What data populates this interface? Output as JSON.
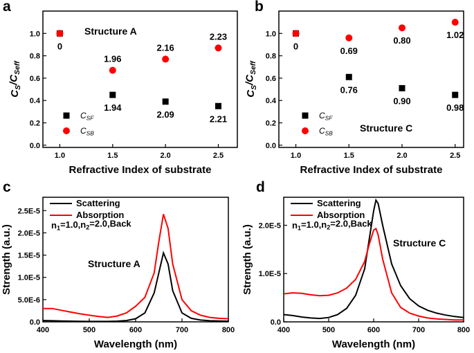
{
  "chart_data": [
    {
      "type": "scatter",
      "panel": "a",
      "x": [
        1.0,
        1.5,
        2.0,
        2.5
      ],
      "series": [
        {
          "name": "C",
          "name_sub": "SF",
          "color": "#000000",
          "marker": "square",
          "values": [
            1.0,
            0.45,
            0.39,
            0.35
          ],
          "point_labels": [
            "0",
            "1.94",
            "2.09",
            "2.21"
          ],
          "label_position": "below"
        },
        {
          "name": "C",
          "name_sub": "SB",
          "color": "#ff0000",
          "marker": "circle",
          "values": [
            1.0,
            0.67,
            0.77,
            0.87
          ],
          "point_labels": [
            null,
            "1.96",
            "2.16",
            "2.23"
          ],
          "label_position": "above"
        }
      ],
      "annotation": "Structure A",
      "xlabel": "Refractive Index of substrate",
      "ylabel": [
        "C",
        "S",
        "/C",
        "Seff"
      ],
      "xlim": [
        0.84,
        2.68
      ],
      "ylim": [
        -0.02,
        1.2
      ],
      "xticks": [
        {
          "value": 1.0,
          "label": "1.0"
        },
        1.5,
        {
          "value": 2.0,
          "label": "2.0"
        },
        2.5
      ],
      "yticks": [
        {
          "value": 0.0,
          "label": "0.0"
        },
        0.2,
        0.4,
        0.6,
        0.8,
        {
          "value": 1.0,
          "label": "1.0"
        }
      ]
    },
    {
      "type": "scatter",
      "panel": "b",
      "x": [
        1.0,
        1.5,
        2.0,
        2.5
      ],
      "series": [
        {
          "name": "C",
          "name_sub": "SF",
          "color": "#000000",
          "marker": "square",
          "values": [
            1.0,
            0.61,
            0.51,
            0.45
          ],
          "point_labels": [
            "0",
            "0.76",
            "0.90",
            "0.98"
          ],
          "label_position": "below"
        },
        {
          "name": "C",
          "name_sub": "SB",
          "color": "#ff0000",
          "marker": "circle",
          "values": [
            1.0,
            0.96,
            1.05,
            1.1
          ],
          "point_labels": [
            null,
            "0.69",
            "0.80",
            "1.02"
          ],
          "label_position": "below"
        }
      ],
      "annotation": "Structure C",
      "xlabel": "Refractive Index of substrate",
      "ylabel": [
        "C",
        "S",
        "/C",
        "Seff"
      ],
      "xlim": [
        0.84,
        2.58
      ],
      "ylim": [
        -0.02,
        1.2
      ],
      "xticks": [
        {
          "value": 1.0,
          "label": "1.0"
        },
        1.5,
        {
          "value": 2.0,
          "label": "2.0"
        },
        2.5
      ],
      "yticks": [
        {
          "value": 0.0,
          "label": "0.0"
        },
        0.2,
        0.4,
        0.6,
        0.8,
        {
          "value": 1.0,
          "label": "1.0"
        }
      ]
    },
    {
      "type": "line",
      "panel": "c",
      "x": [
        400,
        420,
        440,
        460,
        480,
        500,
        520,
        540,
        560,
        580,
        600,
        620,
        640,
        650,
        660,
        670,
        680,
        700,
        720,
        740,
        760,
        780,
        800
      ],
      "series": [
        {
          "name": "Scattering",
          "color": "#000000",
          "values": [
            3e-07,
            2.5e-07,
            2e-07,
            1.5e-07,
            1.2e-07,
            1e-07,
            1e-07,
            1e-07,
            1.5e-07,
            3e-07,
            7e-07,
            2e-06,
            6.5e-06,
            1.1e-05,
            1.55e-05,
            1.3e-05,
            7e-06,
            2e-06,
            8e-07,
            4e-07,
            2.5e-07,
            2e-07,
            1.5e-07
          ]
        },
        {
          "name": "Absorption",
          "color": "#ff0000",
          "values": [
            3e-06,
            3e-06,
            2.6e-06,
            2.2e-06,
            1.8e-06,
            1.5e-06,
            1.2e-06,
            1e-06,
            1.3e-06,
            2e-06,
            3.5e-06,
            5.5e-06,
            1.1e-05,
            1.8e-05,
            2.42e-05,
            2.1e-05,
            1.3e-05,
            5e-06,
            2.5e-06,
            1.5e-06,
            1e-06,
            8e-07,
            7e-07
          ]
        }
      ],
      "condition": [
        "n",
        "1",
        "=1.0,n",
        "2",
        "=2.0,Back"
      ],
      "annotation": "Structure A",
      "xlabel": "Wavelength (nm)",
      "ylabel": "Strength (a.u.)",
      "xlim": [
        400,
        800
      ],
      "ylim": [
        0,
        2.8e-05
      ],
      "xticks": [
        400,
        500,
        600,
        700,
        800
      ],
      "yticks": [
        {
          "value": 0,
          "label": "0.0"
        },
        {
          "value": 5e-06,
          "label": "5.0E-6"
        },
        {
          "value": 1e-05,
          "label": "1.0E-5"
        },
        {
          "value": 1.5e-05,
          "label": "1.5E-5"
        },
        {
          "value": 2e-05,
          "label": "2.0E-5"
        },
        {
          "value": 2.5e-05,
          "label": "2.5E-5"
        }
      ]
    },
    {
      "type": "line",
      "panel": "d",
      "x": [
        400,
        420,
        440,
        460,
        480,
        500,
        520,
        540,
        560,
        580,
        590,
        600,
        605,
        610,
        620,
        640,
        660,
        680,
        700,
        720,
        740,
        760,
        780,
        800
      ],
      "series": [
        {
          "name": "Scattering",
          "color": "#000000",
          "values": [
            1.5e-06,
            1.3e-06,
            1e-06,
            8e-07,
            7e-07,
            9e-07,
            1.5e-06,
            2.8e-06,
            5.5e-06,
            1.1e-05,
            1.7e-05,
            2.3e-05,
            2.52e-05,
            2.45e-05,
            2e-05,
            1.2e-05,
            7.5e-06,
            4.8e-06,
            3.3e-06,
            2.4e-06,
            1.8e-06,
            1.4e-06,
            1.1e-06,
            9e-07
          ]
        },
        {
          "name": "Absorption",
          "color": "#ff0000",
          "values": [
            5.8e-06,
            6e-06,
            5.9e-06,
            5.6e-06,
            5.4e-06,
            5.5e-06,
            6e-06,
            7e-06,
            8.8e-06,
            1.25e-05,
            1.6e-05,
            1.9e-05,
            1.93e-05,
            1.8e-05,
            1.3e-05,
            6e-06,
            3e-06,
            1.8e-06,
            1.2e-06,
            8e-07,
            6e-07,
            5e-07,
            4e-07,
            4e-07
          ]
        }
      ],
      "condition": [
        "n",
        "1",
        "=1.0,n",
        "2",
        "=2.0,Back"
      ],
      "annotation": "Structure C",
      "xlabel": "Wavelength (nm)",
      "ylabel": "Strength (a.u.)",
      "xlim": [
        400,
        800
      ],
      "ylim": [
        0,
        2.58e-05
      ],
      "xticks": [
        400,
        500,
        600,
        700,
        800
      ],
      "yticks": [
        {
          "value": 0,
          "label": "0.0"
        },
        {
          "value": 1e-05,
          "label": "1.0E-5"
        },
        {
          "value": 2e-05,
          "label": "2.0E-5"
        }
      ]
    }
  ]
}
